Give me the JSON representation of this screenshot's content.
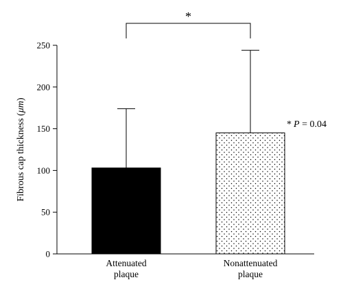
{
  "chart_data": {
    "type": "bar",
    "categories": [
      "Attenuated\nplaque",
      "Nonattenuated\nplaque"
    ],
    "values": [
      103,
      145
    ],
    "error_upper": [
      174,
      244
    ],
    "ylabel_prefix": "Fibrous cap thickness (",
    "ylabel_unit": "μm",
    "ylabel_suffix": ")",
    "ylim": [
      0,
      250
    ],
    "yticks": [
      0,
      50,
      100,
      150,
      200,
      250
    ],
    "series_styles": [
      "solid-black",
      "dotted-white"
    ],
    "significance": {
      "marker": "*",
      "between": [
        0,
        1
      ],
      "annotation_star": "*",
      "annotation_p": "P",
      "annotation_value": " = 0.04"
    },
    "grid": false,
    "colors": {
      "bar_fill_solid": "#000000",
      "bar_outline": "#000000",
      "dot_color": "#000000",
      "background": "#ffffff"
    }
  }
}
